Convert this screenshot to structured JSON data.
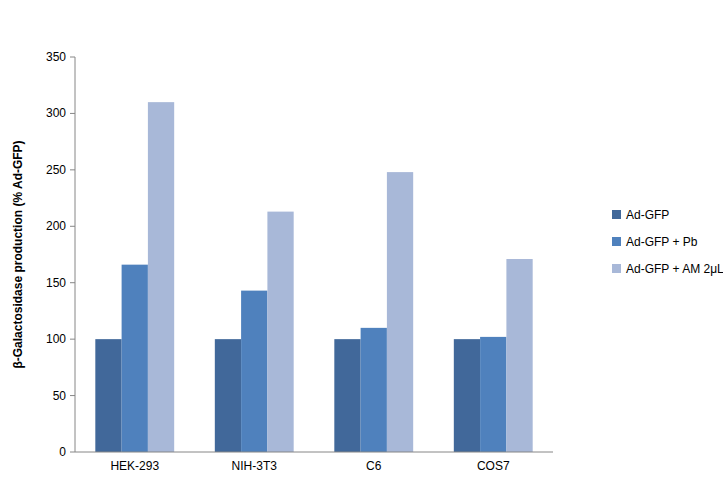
{
  "chart_data": {
    "type": "bar",
    "y_label": "β-Galactosidase production (% Ad-GFP)",
    "categories": [
      "HEK-293",
      "NIH-3T3",
      "C6",
      "COS7"
    ],
    "series": [
      {
        "name": "Ad-GFP",
        "color": "#41689a",
        "values": [
          100,
          100,
          100,
          100
        ]
      },
      {
        "name": "Ad-GFP + Pb",
        "color": "#4f81bd",
        "values": [
          166,
          143,
          110,
          102
        ]
      },
      {
        "name": "Ad-GFP + AM 2μL",
        "color": "#a8b8d8",
        "values": [
          310,
          213,
          248,
          171
        ]
      }
    ],
    "ylim": [
      0,
      350
    ],
    "yticks": [
      0,
      50,
      100,
      150,
      200,
      250,
      300,
      350
    ],
    "grid": false,
    "legend": "right"
  }
}
